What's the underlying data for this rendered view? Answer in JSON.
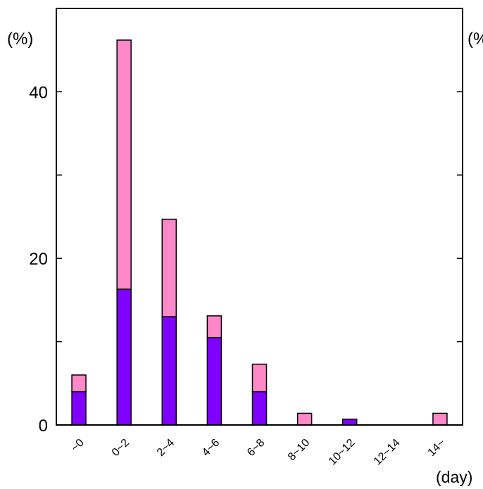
{
  "chart_data": {
    "type": "bar",
    "stacked": true,
    "categories": [
      "~0",
      "0~2",
      "2~4",
      "4~6",
      "6~8",
      "8~10",
      "10~12",
      "12~14",
      "14~"
    ],
    "series": [
      {
        "color": "#8000ff",
        "values": [
          4.0,
          16.3,
          13.0,
          10.5,
          4.0,
          0.0,
          0.7,
          0.0,
          0.0
        ]
      },
      {
        "color": "#ff88c8",
        "values": [
          2.0,
          29.9,
          11.7,
          2.6,
          3.3,
          1.4,
          0.0,
          0.0,
          1.4
        ]
      }
    ],
    "ylim": [
      0,
      50
    ],
    "yticks": [
      0,
      20,
      40
    ],
    "ylabel": "(%)",
    "ylabel_right": "(%",
    "xlabel": "(day)",
    "grid": false
  }
}
